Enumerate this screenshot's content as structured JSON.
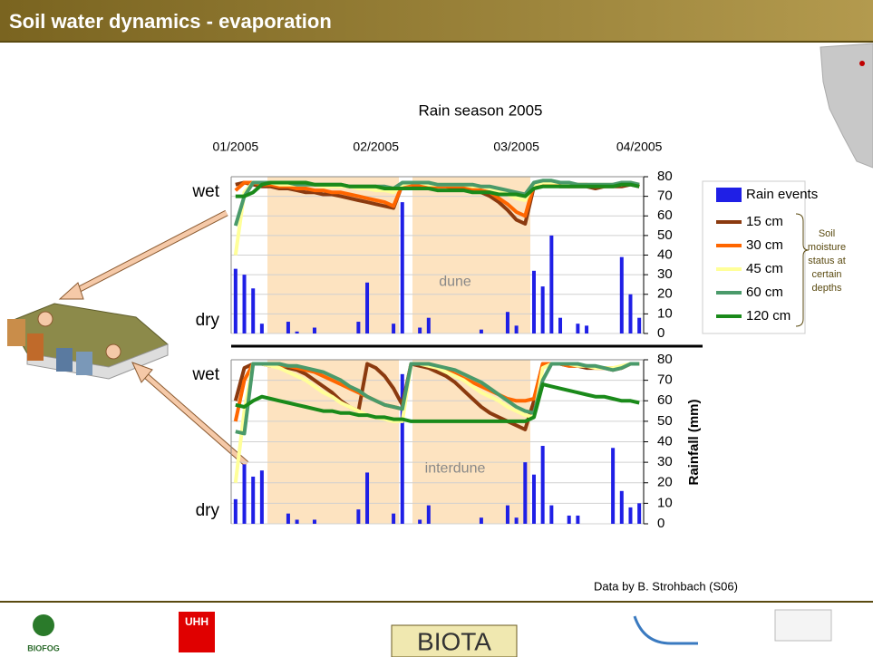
{
  "header": {
    "title": "Soil water dynamics - evaporation"
  },
  "chart_data": [
    {
      "type": "combo",
      "title": "Rain season 2005",
      "annotation": "dune",
      "wet_label": "wet",
      "dry_label": "dry",
      "categories": [
        "01/2005",
        null,
        null,
        null,
        null,
        null,
        null,
        null,
        null,
        null,
        null,
        null,
        null,
        null,
        null,
        null,
        "02/2005",
        null,
        null,
        null,
        null,
        null,
        null,
        null,
        null,
        null,
        null,
        null,
        null,
        null,
        null,
        null,
        "03/2005",
        null,
        null,
        null,
        null,
        null,
        null,
        null,
        null,
        null,
        null,
        null,
        null,
        null,
        "04/2005"
      ],
      "ylim": [
        0,
        80
      ],
      "yticks": [
        0,
        10,
        20,
        30,
        40,
        50,
        60,
        70,
        80
      ],
      "grid": true,
      "bars": {
        "name": "Rain events",
        "color": "#1f1fe6",
        "values": [
          33,
          30,
          23,
          5,
          0,
          0,
          6,
          1,
          0,
          3,
          0,
          0,
          0,
          0,
          6,
          26,
          0,
          0,
          5,
          67,
          0,
          3,
          8,
          0,
          0,
          0,
          0,
          0,
          2,
          0,
          0,
          11,
          4,
          0,
          32,
          24,
          50,
          8,
          0,
          5,
          4,
          0,
          0,
          0,
          39,
          20,
          8
        ]
      },
      "series": [
        {
          "name": "15 cm",
          "color": "#8b3a0f",
          "values": [
            76,
            77,
            76,
            75,
            75,
            74,
            74,
            73,
            72,
            72,
            71,
            71,
            70,
            69,
            68,
            67,
            66,
            65,
            64,
            76,
            76,
            75,
            75,
            75,
            75,
            74,
            74,
            73,
            72,
            70,
            67,
            63,
            58,
            56,
            75,
            76,
            76,
            75,
            75,
            75,
            75,
            74,
            75,
            75,
            75,
            76,
            75
          ]
        },
        {
          "name": "30 cm",
          "color": "#ff6600",
          "values": [
            73,
            77,
            77,
            76,
            76,
            75,
            75,
            74,
            74,
            73,
            73,
            72,
            72,
            71,
            70,
            69,
            68,
            67,
            65,
            76,
            76,
            76,
            75,
            75,
            75,
            75,
            75,
            74,
            73,
            72,
            69,
            66,
            62,
            60,
            76,
            77,
            76,
            76,
            75,
            76,
            76,
            75,
            75,
            76,
            76,
            77,
            75
          ]
        },
        {
          "name": "45 cm",
          "color": "#ffff99",
          "values": [
            40,
            72,
            77,
            77,
            77,
            76,
            76,
            76,
            76,
            76,
            75,
            75,
            75,
            75,
            74,
            74,
            73,
            73,
            72,
            76,
            77,
            77,
            76,
            76,
            76,
            76,
            76,
            75,
            75,
            74,
            73,
            71,
            69,
            68,
            76,
            77,
            77,
            77,
            76,
            76,
            76,
            76,
            76,
            76,
            76,
            77,
            76
          ]
        },
        {
          "name": "60 cm",
          "color": "#4a9a6a",
          "values": [
            55,
            70,
            77,
            77,
            77,
            77,
            77,
            76,
            76,
            76,
            76,
            76,
            76,
            75,
            75,
            75,
            75,
            75,
            74,
            77,
            77,
            77,
            77,
            76,
            76,
            76,
            76,
            76,
            75,
            75,
            74,
            73,
            72,
            71,
            77,
            78,
            78,
            77,
            77,
            76,
            76,
            76,
            76,
            76,
            77,
            77,
            76
          ]
        },
        {
          "name": "120 cm",
          "color": "#1a8a1a",
          "values": [
            70,
            70,
            72,
            76,
            77,
            77,
            77,
            77,
            77,
            76,
            76,
            76,
            76,
            75,
            75,
            75,
            75,
            74,
            74,
            74,
            74,
            74,
            74,
            73,
            73,
            73,
            73,
            72,
            72,
            72,
            71,
            71,
            71,
            70,
            74,
            75,
            75,
            75,
            75,
            75,
            75,
            75,
            75,
            75,
            76,
            76,
            75
          ]
        }
      ],
      "legend_note": [
        "Soil",
        "moisture",
        "status at",
        "certain",
        "depths"
      ]
    },
    {
      "type": "combo",
      "annotation": "interdune",
      "wet_label": "wet",
      "dry_label": "dry",
      "y_label": "Rainfall (mm)",
      "ylim": [
        0,
        80
      ],
      "yticks": [
        0,
        10,
        20,
        30,
        40,
        50,
        60,
        70,
        80
      ],
      "grid": true,
      "bars": {
        "color": "#1f1fe6",
        "values": [
          12,
          29,
          23,
          26,
          0,
          0,
          5,
          2,
          0,
          2,
          0,
          0,
          0,
          0,
          7,
          25,
          0,
          0,
          5,
          73,
          0,
          2,
          9,
          0,
          0,
          0,
          0,
          0,
          3,
          0,
          0,
          9,
          3,
          30,
          24,
          38,
          9,
          0,
          4,
          4,
          0,
          0,
          0,
          37,
          16,
          8,
          10
        ]
      },
      "series": [
        {
          "color": "#8b3a0f",
          "values": [
            60,
            76,
            78,
            78,
            77,
            77,
            76,
            75,
            73,
            70,
            67,
            64,
            60,
            57,
            55,
            78,
            76,
            72,
            66,
            58,
            78,
            77,
            76,
            74,
            72,
            69,
            65,
            61,
            57,
            54,
            52,
            50,
            48,
            46,
            60,
            78,
            78,
            78,
            77,
            77,
            76,
            76,
            76,
            75,
            76,
            78,
            78
          ]
        },
        {
          "color": "#ff6600",
          "values": [
            50,
            70,
            78,
            78,
            78,
            77,
            77,
            76,
            75,
            74,
            72,
            70,
            68,
            66,
            64,
            62,
            60,
            58,
            57,
            56,
            78,
            78,
            77,
            76,
            75,
            73,
            71,
            69,
            67,
            65,
            63,
            61,
            60,
            60,
            61,
            78,
            78,
            78,
            77,
            77,
            77,
            76,
            76,
            76,
            76,
            78,
            78
          ]
        },
        {
          "color": "#ffff99",
          "values": [
            20,
            55,
            78,
            78,
            77,
            76,
            74,
            72,
            70,
            67,
            64,
            62,
            59,
            57,
            55,
            53,
            52,
            51,
            50,
            50,
            78,
            78,
            77,
            76,
            74,
            72,
            70,
            67,
            64,
            62,
            60,
            57,
            55,
            53,
            52,
            76,
            78,
            78,
            78,
            77,
            77,
            76,
            76,
            76,
            77,
            78,
            78
          ]
        },
        {
          "color": "#4a9a6a",
          "values": [
            45,
            44,
            78,
            78,
            78,
            78,
            77,
            77,
            76,
            75,
            74,
            72,
            70,
            67,
            65,
            62,
            60,
            58,
            57,
            56,
            78,
            78,
            78,
            77,
            76,
            75,
            73,
            71,
            69,
            66,
            63,
            60,
            57,
            55,
            54,
            70,
            78,
            78,
            78,
            78,
            77,
            77,
            76,
            75,
            76,
            78,
            78
          ]
        },
        {
          "color": "#1a8a1a",
          "values": [
            58,
            57,
            60,
            62,
            61,
            60,
            59,
            58,
            57,
            56,
            55,
            55,
            54,
            54,
            53,
            53,
            52,
            52,
            51,
            51,
            50,
            50,
            50,
            50,
            50,
            50,
            50,
            50,
            50,
            50,
            50,
            50,
            50,
            50,
            52,
            68,
            67,
            66,
            65,
            64,
            63,
            62,
            62,
            61,
            60,
            60,
            59
          ]
        }
      ]
    }
  ],
  "footer": {
    "credit": "Data by B. Strohbach (S06)",
    "logos": [
      "BIOFOG",
      "UHH",
      "BIOTA"
    ]
  }
}
